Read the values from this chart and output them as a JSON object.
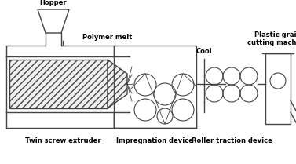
{
  "bg_color": "#ffffff",
  "line_color": "#444444",
  "labels": {
    "hopper": "Hopper",
    "polymer_melt": "Polymer melt",
    "twin_screw": "Twin screw extruder",
    "impregnation": "Impregnation device",
    "roller": "Roller traction device",
    "cool": "Cool",
    "plastic": "Plastic grain\ncutting machine"
  },
  "figsize": [
    3.77,
    2.09
  ],
  "dpi": 100
}
